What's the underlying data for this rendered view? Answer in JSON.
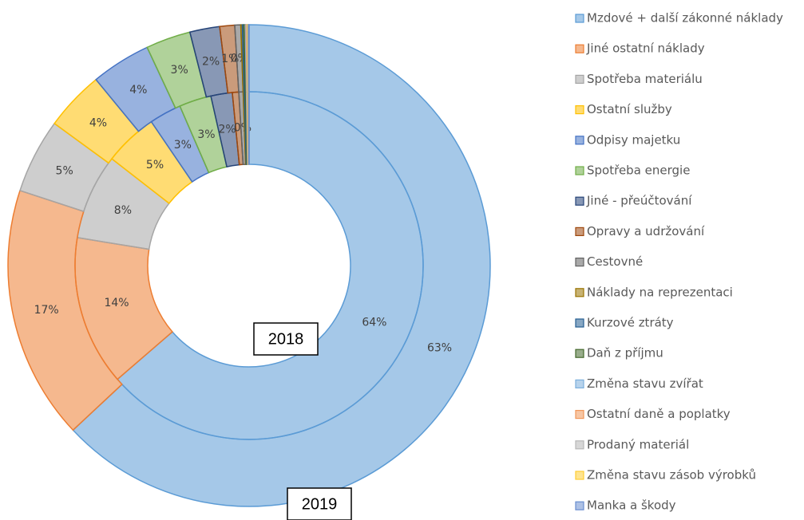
{
  "chart_data": {
    "type": "donut",
    "categories": [
      "Mzdové + další zákonné náklady",
      "Jiné ostatní náklady",
      "Spotřeba materiálu",
      "Ostatní služby",
      "Odpisy majetku",
      "Spotřeba energie",
      "Jiné - přeúčtování",
      "Opravy a udržování",
      "Cestovné",
      "Náklady na reprezentaci",
      "Kurzové ztráty",
      "Daň z příjmu",
      "Změna stavu zvířat",
      "Ostatní daně a poplatky",
      "Prodaný materiál",
      "Změna stavu zásob výrobků",
      "Manka a škody"
    ],
    "colors": [
      "#5b9bd5",
      "#ed7d31",
      "#a5a5a5",
      "#ffc000",
      "#4472c4",
      "#70ad47",
      "#264478",
      "#9e480e",
      "#636363",
      "#997300",
      "#255e91",
      "#43682b",
      "#7cafdd",
      "#f1975a",
      "#b7b7b7",
      "#ffcd33",
      "#698ed0"
    ],
    "series": [
      {
        "name": "2018",
        "values": [
          64,
          14,
          8,
          5,
          3,
          3,
          2,
          0.6,
          0.4,
          0.1,
          0.1,
          0.1,
          0.05,
          0.05,
          0.05,
          0.05,
          0.05
        ],
        "value_labels": [
          "64%",
          "14%",
          "8%",
          "5%",
          "3%",
          "3%",
          "2%",
          null,
          "0%",
          null,
          null,
          null,
          null,
          null,
          null,
          null,
          null
        ]
      },
      {
        "name": "2019",
        "values": [
          63,
          17,
          5,
          4,
          4,
          3,
          2,
          1,
          0.4,
          0.1,
          0.1,
          0.1,
          0.05,
          0.05,
          0.05,
          0.05,
          0.05
        ],
        "value_labels": [
          "63%",
          "17%",
          "5%",
          "4%",
          "4%",
          "3%",
          "2%",
          "1%",
          "0%",
          null,
          null,
          null,
          null,
          null,
          null,
          null,
          null
        ]
      }
    ],
    "legend": "right"
  }
}
